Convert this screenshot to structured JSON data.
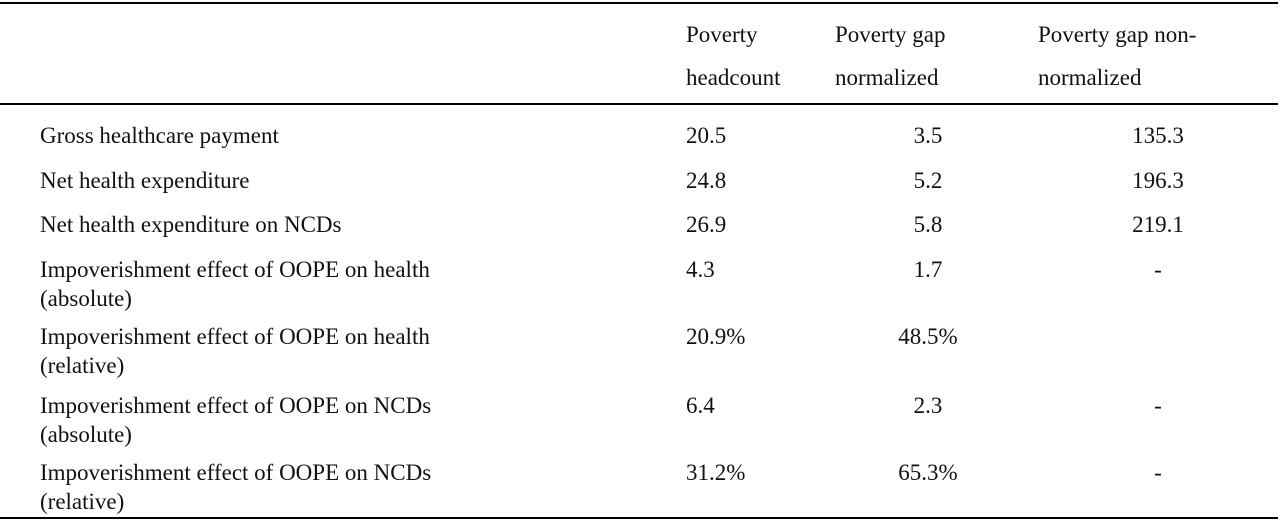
{
  "table": {
    "headers": [
      [
        "Poverty",
        "headcount"
      ],
      [
        "Poverty gap",
        "normalized"
      ],
      [
        "Poverty gap non-",
        "normalized"
      ]
    ],
    "rows": [
      {
        "label": [
          "Gross healthcare payment"
        ],
        "values": [
          "20.5",
          "3.5",
          "135.3"
        ]
      },
      {
        "label": [
          "Net health expenditure"
        ],
        "values": [
          "24.8",
          "5.2",
          "196.3"
        ]
      },
      {
        "label": [
          "Net health expenditure on NCDs"
        ],
        "values": [
          "26.9",
          "5.8",
          "219.1"
        ]
      },
      {
        "label": [
          "Impoverishment effect of OOPE on health",
          "(absolute)"
        ],
        "values": [
          "4.3",
          "1.7",
          "-"
        ]
      },
      {
        "label": [
          "Impoverishment effect of OOPE on health",
          "(relative)"
        ],
        "values": [
          "20.9%",
          "48.5%",
          ""
        ]
      },
      {
        "label": [
          "Impoverishment effect of OOPE on NCDs",
          "(absolute)"
        ],
        "values": [
          "6.4",
          "2.3",
          "-"
        ]
      },
      {
        "label": [
          "Impoverishment effect of OOPE on NCDs",
          "(relative)"
        ],
        "values": [
          "31.2%",
          "65.3%",
          "-"
        ]
      }
    ]
  }
}
